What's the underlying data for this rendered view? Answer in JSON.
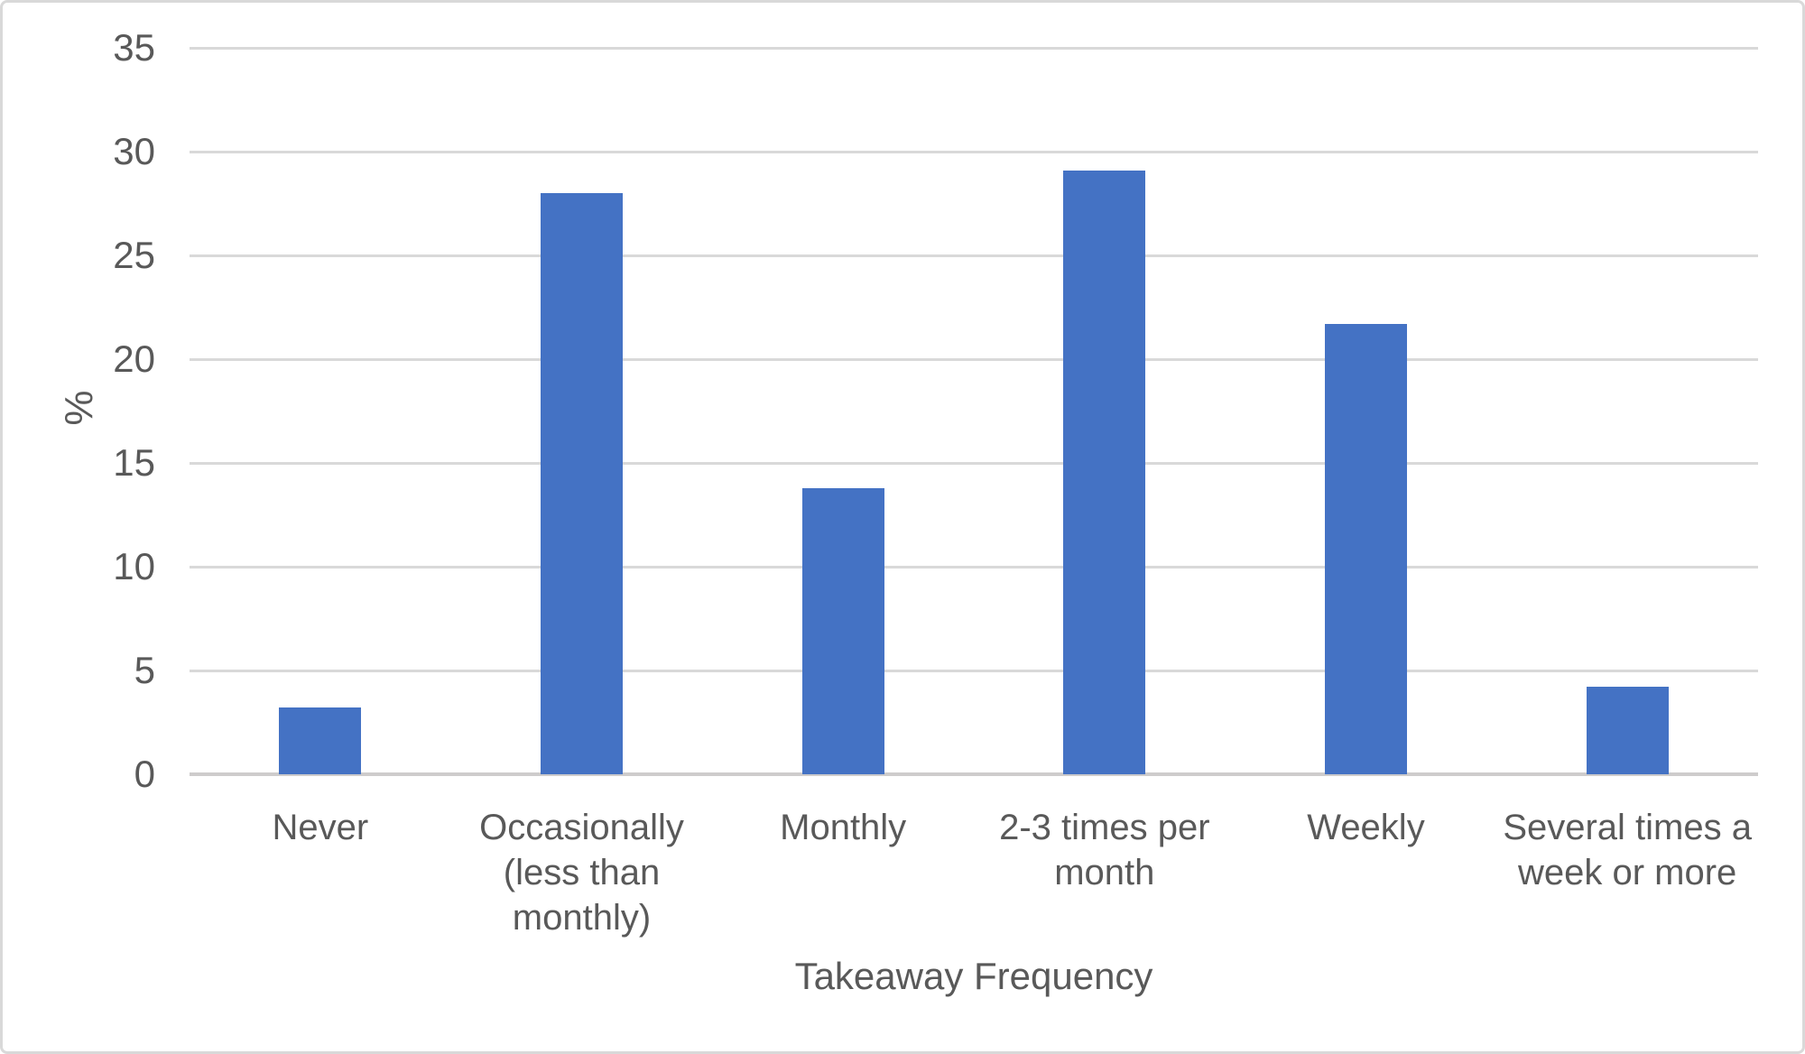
{
  "chart_data": {
    "type": "bar",
    "title": "",
    "xlabel": "Takeaway Frequency",
    "ylabel": "%",
    "categories": [
      "Never",
      "Occasionally (less than monthly)",
      "Monthly",
      "2-3 times per month",
      "Weekly",
      "Several times a week or more"
    ],
    "values": [
      3.2,
      28,
      13.8,
      29.1,
      21.7,
      4.2
    ],
    "ylim": [
      0,
      35
    ],
    "yticks": [
      0,
      5,
      10,
      15,
      20,
      25,
      30,
      35
    ],
    "grid": true,
    "legend": "none",
    "colors": {
      "bar": "#4472C4",
      "gridline": "#D9D9D9",
      "axis_line": "#CECCCC",
      "text": "#595959",
      "frame_border": "#D9D9D9",
      "background": "#FFFFFF"
    }
  }
}
